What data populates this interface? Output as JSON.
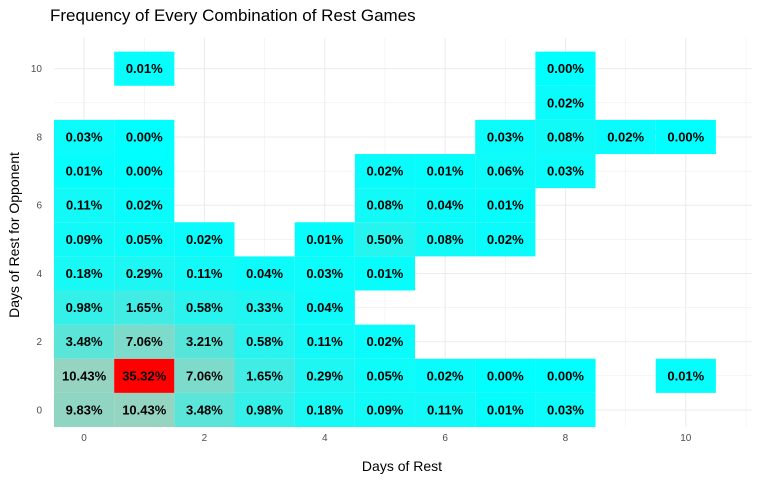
{
  "chart_data": {
    "type": "heatmap",
    "title": "Frequency of Every Combination of Rest Games",
    "xlabel": "Days of Rest",
    "ylabel": "Days of Rest for Opponent",
    "xlim": [
      -0.5,
      11.1
    ],
    "ylim": [
      -0.5,
      10.9
    ],
    "x_ticks": [
      0,
      2,
      4,
      6,
      8,
      10
    ],
    "y_ticks": [
      0,
      2,
      4,
      6,
      8,
      10
    ],
    "grid": true,
    "color_scale": {
      "low": "#00ffff",
      "mid": "#bcc8b0",
      "high": "#ff0000"
    },
    "cells": [
      {
        "x": 0,
        "y": 0,
        "label": "9.83%",
        "value": 9.83
      },
      {
        "x": 1,
        "y": 0,
        "label": "10.43%",
        "value": 10.43
      },
      {
        "x": 2,
        "y": 0,
        "label": "3.48%",
        "value": 3.48
      },
      {
        "x": 3,
        "y": 0,
        "label": "0.98%",
        "value": 0.98
      },
      {
        "x": 4,
        "y": 0,
        "label": "0.18%",
        "value": 0.18
      },
      {
        "x": 5,
        "y": 0,
        "label": "0.09%",
        "value": 0.09
      },
      {
        "x": 6,
        "y": 0,
        "label": "0.11%",
        "value": 0.11
      },
      {
        "x": 7,
        "y": 0,
        "label": "0.01%",
        "value": 0.01
      },
      {
        "x": 8,
        "y": 0,
        "label": "0.03%",
        "value": 0.03
      },
      {
        "x": 0,
        "y": 1,
        "label": "10.43%",
        "value": 10.43
      },
      {
        "x": 1,
        "y": 1,
        "label": "35.32%",
        "value": 35.32
      },
      {
        "x": 2,
        "y": 1,
        "label": "7.06%",
        "value": 7.06
      },
      {
        "x": 3,
        "y": 1,
        "label": "1.65%",
        "value": 1.65
      },
      {
        "x": 4,
        "y": 1,
        "label": "0.29%",
        "value": 0.29
      },
      {
        "x": 5,
        "y": 1,
        "label": "0.05%",
        "value": 0.05
      },
      {
        "x": 6,
        "y": 1,
        "label": "0.02%",
        "value": 0.02
      },
      {
        "x": 7,
        "y": 1,
        "label": "0.00%",
        "value": 0.0
      },
      {
        "x": 8,
        "y": 1,
        "label": "0.00%",
        "value": 0.0
      },
      {
        "x": 10,
        "y": 1,
        "label": "0.01%",
        "value": 0.01
      },
      {
        "x": 0,
        "y": 2,
        "label": "3.48%",
        "value": 3.48
      },
      {
        "x": 1,
        "y": 2,
        "label": "7.06%",
        "value": 7.06
      },
      {
        "x": 2,
        "y": 2,
        "label": "3.21%",
        "value": 3.21
      },
      {
        "x": 3,
        "y": 2,
        "label": "0.58%",
        "value": 0.58
      },
      {
        "x": 4,
        "y": 2,
        "label": "0.11%",
        "value": 0.11
      },
      {
        "x": 5,
        "y": 2,
        "label": "0.02%",
        "value": 0.02
      },
      {
        "x": 0,
        "y": 3,
        "label": "0.98%",
        "value": 0.98
      },
      {
        "x": 1,
        "y": 3,
        "label": "1.65%",
        "value": 1.65
      },
      {
        "x": 2,
        "y": 3,
        "label": "0.58%",
        "value": 0.58
      },
      {
        "x": 3,
        "y": 3,
        "label": "0.33%",
        "value": 0.33
      },
      {
        "x": 4,
        "y": 3,
        "label": "0.04%",
        "value": 0.04
      },
      {
        "x": 0,
        "y": 4,
        "label": "0.18%",
        "value": 0.18
      },
      {
        "x": 1,
        "y": 4,
        "label": "0.29%",
        "value": 0.29
      },
      {
        "x": 2,
        "y": 4,
        "label": "0.11%",
        "value": 0.11
      },
      {
        "x": 3,
        "y": 4,
        "label": "0.04%",
        "value": 0.04
      },
      {
        "x": 4,
        "y": 4,
        "label": "0.03%",
        "value": 0.03
      },
      {
        "x": 5,
        "y": 4,
        "label": "0.01%",
        "value": 0.01
      },
      {
        "x": 0,
        "y": 5,
        "label": "0.09%",
        "value": 0.09
      },
      {
        "x": 1,
        "y": 5,
        "label": "0.05%",
        "value": 0.05
      },
      {
        "x": 2,
        "y": 5,
        "label": "0.02%",
        "value": 0.02
      },
      {
        "x": 4,
        "y": 5,
        "label": "0.01%",
        "value": 0.01
      },
      {
        "x": 5,
        "y": 5,
        "label": "0.50%",
        "value": 0.5
      },
      {
        "x": 6,
        "y": 5,
        "label": "0.08%",
        "value": 0.08
      },
      {
        "x": 7,
        "y": 5,
        "label": "0.02%",
        "value": 0.02
      },
      {
        "x": 0,
        "y": 6,
        "label": "0.11%",
        "value": 0.11
      },
      {
        "x": 1,
        "y": 6,
        "label": "0.02%",
        "value": 0.02
      },
      {
        "x": 5,
        "y": 6,
        "label": "0.08%",
        "value": 0.08
      },
      {
        "x": 6,
        "y": 6,
        "label": "0.04%",
        "value": 0.04
      },
      {
        "x": 7,
        "y": 6,
        "label": "0.01%",
        "value": 0.01
      },
      {
        "x": 0,
        "y": 7,
        "label": "0.01%",
        "value": 0.01
      },
      {
        "x": 1,
        "y": 7,
        "label": "0.00%",
        "value": 0.0
      },
      {
        "x": 5,
        "y": 7,
        "label": "0.02%",
        "value": 0.02
      },
      {
        "x": 6,
        "y": 7,
        "label": "0.01%",
        "value": 0.01
      },
      {
        "x": 7,
        "y": 7,
        "label": "0.06%",
        "value": 0.06
      },
      {
        "x": 8,
        "y": 7,
        "label": "0.03%",
        "value": 0.03
      },
      {
        "x": 0,
        "y": 8,
        "label": "0.03%",
        "value": 0.03
      },
      {
        "x": 1,
        "y": 8,
        "label": "0.00%",
        "value": 0.0
      },
      {
        "x": 7,
        "y": 8,
        "label": "0.03%",
        "value": 0.03
      },
      {
        "x": 8,
        "y": 8,
        "label": "0.08%",
        "value": 0.08
      },
      {
        "x": 9,
        "y": 8,
        "label": "0.02%",
        "value": 0.02
      },
      {
        "x": 10,
        "y": 8,
        "label": "0.00%",
        "value": 0.0
      },
      {
        "x": 8,
        "y": 9,
        "label": "0.02%",
        "value": 0.02
      },
      {
        "x": 1,
        "y": 10,
        "label": "0.01%",
        "value": 0.01
      },
      {
        "x": 8,
        "y": 10,
        "label": "0.00%",
        "value": 0.0
      }
    ]
  }
}
